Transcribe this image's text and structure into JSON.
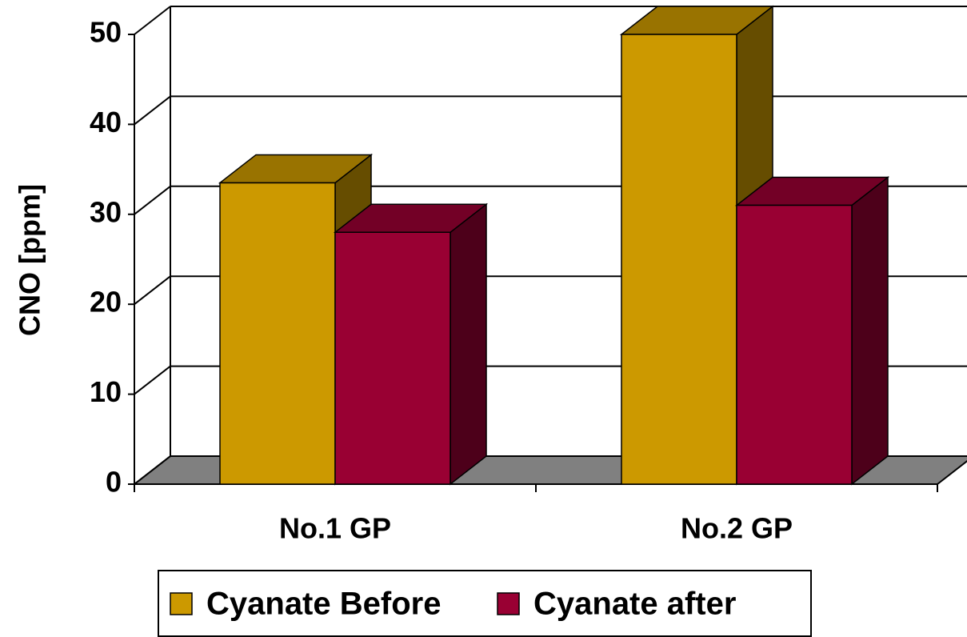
{
  "chart_data": {
    "type": "bar3d",
    "y_label": "CNO [ppm]",
    "categories": [
      "No.1 GP",
      "No.2 GP"
    ],
    "series": [
      {
        "name": "Cyanate Before",
        "color": "#CC9900",
        "values": [
          33.5,
          50
        ]
      },
      {
        "name": "Cyanate after",
        "color": "#990033",
        "values": [
          28,
          31
        ]
      }
    ],
    "ylim": [
      0,
      50
    ],
    "yticks": [
      0,
      10,
      20,
      30,
      40,
      50
    ],
    "grid": true,
    "legend": "bottom"
  }
}
